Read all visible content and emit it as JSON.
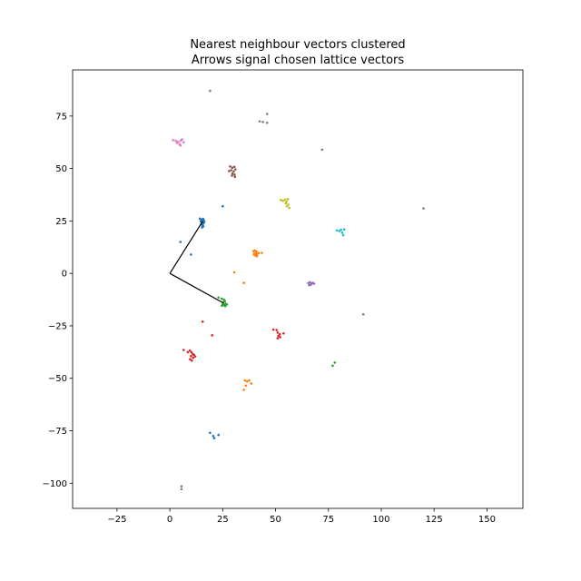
{
  "chart_data": {
    "type": "scatter",
    "title": "Nearest neighbour vectors clustered",
    "subtitle": "Arrows signal chosen lattice vectors",
    "xlabel": "",
    "ylabel": "",
    "xlim": [
      -46,
      167
    ],
    "ylim": [
      -112,
      97
    ],
    "x_ticks": [
      -25,
      0,
      25,
      50,
      75,
      100,
      125,
      150
    ],
    "y_ticks": [
      75,
      50,
      25,
      0,
      -25,
      -50,
      -75,
      -100
    ],
    "x_tick_labels": [
      "−25",
      "0",
      "25",
      "50",
      "75",
      "100",
      "125",
      "150"
    ],
    "y_tick_labels": [
      "75",
      "50",
      "25",
      "0",
      "−25",
      "−50",
      "−75",
      "−100"
    ],
    "grid": false,
    "legend": "none",
    "lattice_vectors": [
      {
        "x": 15.5,
        "y": 24.8
      },
      {
        "x": 25.5,
        "y": -14.2
      }
    ],
    "series": [
      {
        "color": "#1f77b4",
        "points": [
          [
            14.2,
            26.1
          ],
          [
            14.8,
            25.7
          ],
          [
            15.1,
            25.2
          ],
          [
            15.6,
            24.9
          ],
          [
            16.0,
            25.4
          ],
          [
            15.3,
            24.2
          ],
          [
            15.9,
            23.8
          ],
          [
            14.9,
            23.5
          ],
          [
            15.4,
            22.9
          ],
          [
            15.8,
            22.4
          ],
          [
            15.2,
            21.9
          ],
          [
            16.3,
            24.6
          ],
          [
            14.6,
            24.8
          ],
          [
            15.7,
            26.0
          ],
          [
            5.0,
            15.0
          ],
          [
            10.0,
            9.0
          ],
          [
            25.0,
            32.0
          ],
          [
            19.0,
            -76.0
          ],
          [
            20.5,
            -77.5
          ],
          [
            23.0,
            -77.0
          ],
          [
            21.0,
            -78.5
          ]
        ]
      },
      {
        "color": "#ff7f0e",
        "points": [
          [
            39.5,
            10.6
          ],
          [
            40.2,
            10.9
          ],
          [
            41.0,
            10.4
          ],
          [
            40.6,
            9.8
          ],
          [
            39.8,
            9.3
          ],
          [
            41.3,
            9.1
          ],
          [
            40.4,
            8.6
          ],
          [
            41.1,
            8.2
          ],
          [
            39.9,
            8.9
          ],
          [
            42.0,
            9.7
          ],
          [
            43.5,
            9.8
          ],
          [
            30.5,
            0.5
          ],
          [
            35.0,
            -4.5
          ],
          [
            35.5,
            -51.0
          ],
          [
            36.5,
            -51.5
          ],
          [
            37.5,
            -51.0
          ],
          [
            38.5,
            -52.5
          ],
          [
            36.0,
            -53.5
          ],
          [
            35.0,
            -55.5
          ]
        ]
      },
      {
        "color": "#2ca02c",
        "points": [
          [
            23.0,
            -11.5
          ],
          [
            24.5,
            -12.0
          ],
          [
            25.5,
            -12.5
          ],
          [
            26.0,
            -13.2
          ],
          [
            25.2,
            -13.9
          ],
          [
            26.4,
            -14.4
          ],
          [
            25.6,
            -15.0
          ],
          [
            26.2,
            -15.6
          ],
          [
            25.0,
            -14.8
          ],
          [
            24.6,
            -15.4
          ],
          [
            27.0,
            -14.8
          ],
          [
            77.0,
            -44.0
          ],
          [
            78.0,
            -42.5
          ]
        ]
      },
      {
        "color": "#d62728",
        "points": [
          [
            6.5,
            -36.5
          ],
          [
            8.5,
            -37.5
          ],
          [
            9.5,
            -36.8
          ],
          [
            10.2,
            -37.6
          ],
          [
            10.8,
            -38.4
          ],
          [
            11.4,
            -38.8
          ],
          [
            10.0,
            -39.4
          ],
          [
            11.0,
            -40.2
          ],
          [
            9.6,
            -40.9
          ],
          [
            10.4,
            -41.6
          ],
          [
            12.0,
            -39.6
          ],
          [
            15.5,
            -23.0
          ],
          [
            20.0,
            -29.5
          ],
          [
            49.0,
            -26.8
          ],
          [
            50.5,
            -27.0
          ],
          [
            51.0,
            -28.2
          ],
          [
            52.0,
            -29.0
          ],
          [
            51.4,
            -29.8
          ],
          [
            52.2,
            -30.4
          ],
          [
            51.0,
            -30.9
          ],
          [
            53.8,
            -28.6
          ]
        ]
      },
      {
        "color": "#9467bd",
        "points": [
          [
            65.5,
            -4.6
          ],
          [
            66.3,
            -4.2
          ],
          [
            67.0,
            -4.9
          ],
          [
            67.6,
            -4.5
          ],
          [
            66.6,
            -5.4
          ],
          [
            68.2,
            -4.9
          ],
          [
            65.9,
            -5.6
          ]
        ]
      },
      {
        "color": "#8c564b",
        "points": [
          [
            28.5,
            51.0
          ],
          [
            29.5,
            50.4
          ],
          [
            30.5,
            50.8
          ],
          [
            29.0,
            49.2
          ],
          [
            30.2,
            48.6
          ],
          [
            29.6,
            47.6
          ],
          [
            30.6,
            47.1
          ],
          [
            29.4,
            46.6
          ],
          [
            30.8,
            46.0
          ],
          [
            28.0,
            48.8
          ],
          [
            31.0,
            49.6
          ]
        ]
      },
      {
        "color": "#e377c2",
        "points": [
          [
            1.5,
            63.5
          ],
          [
            2.8,
            63.2
          ],
          [
            4.0,
            62.8
          ],
          [
            5.2,
            63.4
          ],
          [
            3.4,
            62.2
          ],
          [
            4.6,
            61.6
          ],
          [
            6.5,
            62.5
          ],
          [
            5.8,
            63.9
          ],
          [
            5.0,
            61.0
          ]
        ]
      },
      {
        "color": "#7f7f7f",
        "points": [
          [
            19.0,
            87.0
          ],
          [
            42.5,
            72.5
          ],
          [
            44.0,
            72.2
          ],
          [
            46.0,
            71.8
          ],
          [
            46.0,
            76.0
          ],
          [
            72.0,
            59.0
          ],
          [
            120.0,
            31.0
          ],
          [
            91.5,
            -19.5
          ],
          [
            5.5,
            -101.5
          ],
          [
            5.5,
            -102.8
          ]
        ]
      },
      {
        "color": "#bcbd22",
        "points": [
          [
            52.5,
            35.0
          ],
          [
            53.5,
            34.6
          ],
          [
            54.5,
            35.2
          ],
          [
            55.2,
            34.2
          ],
          [
            55.8,
            35.4
          ],
          [
            54.8,
            33.4
          ],
          [
            56.0,
            32.8
          ],
          [
            55.4,
            32.0
          ],
          [
            56.5,
            31.2
          ]
        ]
      },
      {
        "color": "#17becf",
        "points": [
          [
            79.0,
            20.5
          ],
          [
            80.2,
            20.2
          ],
          [
            81.0,
            20.8
          ],
          [
            82.5,
            21.0
          ],
          [
            81.5,
            19.4
          ],
          [
            82.0,
            18.2
          ]
        ]
      }
    ]
  }
}
